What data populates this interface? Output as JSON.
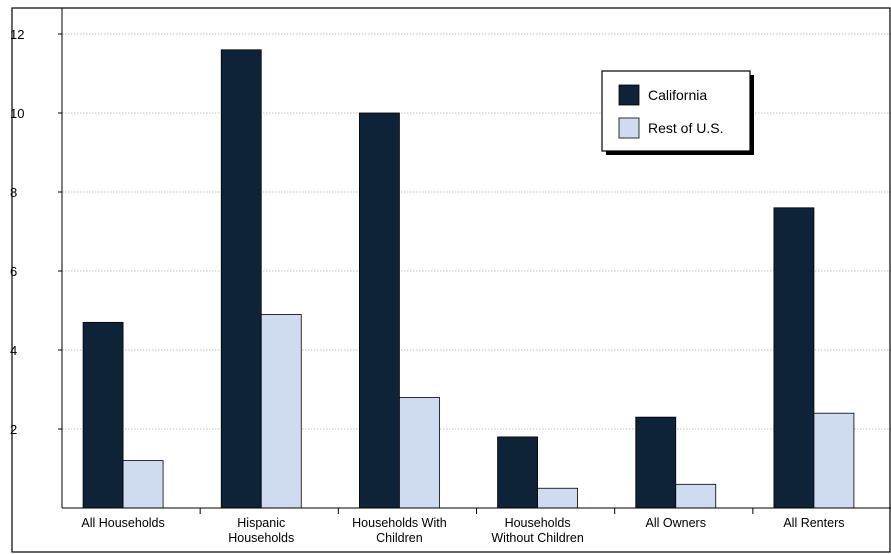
{
  "chart_data": {
    "type": "bar",
    "categories": [
      [
        "All Households"
      ],
      [
        "Hispanic",
        "Households"
      ],
      [
        "Households With",
        "Children"
      ],
      [
        "Households",
        "Without Children"
      ],
      [
        "All Owners"
      ],
      [
        "All Renters"
      ]
    ],
    "series": [
      {
        "name": "California",
        "color": "#0e2238",
        "values": [
          4.7,
          11.6,
          10.0,
          1.8,
          2.3,
          7.6
        ]
      },
      {
        "name": "Rest of U.S.",
        "color": "#cfdbf0",
        "values": [
          1.2,
          4.9,
          2.8,
          0.5,
          0.6,
          2.4
        ]
      }
    ],
    "y_ticks": [
      2,
      4,
      6,
      8,
      10,
      12
    ],
    "ylim": [
      0,
      12
    ],
    "grid": true,
    "legend_position": "top-right"
  }
}
